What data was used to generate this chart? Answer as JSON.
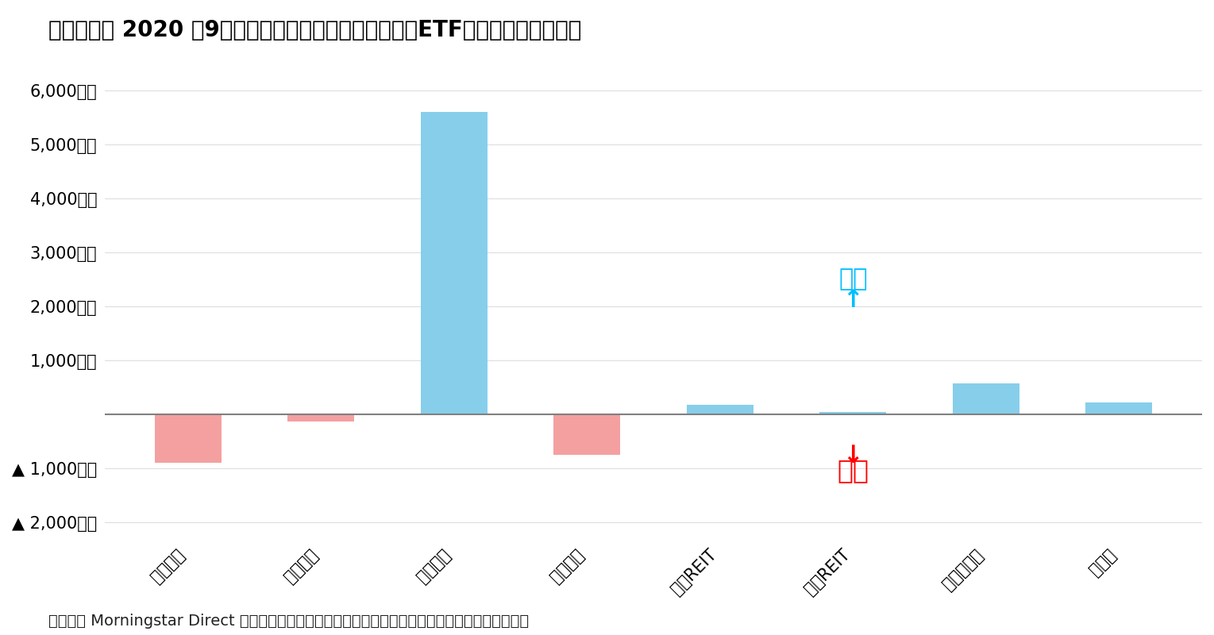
{
  "title": "》図表１》 2020 年9月の日本籍追加型株式投信（除くETF）の推計資金流出入",
  "title_raw": "【図表１】 2020 年9月の日本籍追加型株式投信（除くETF）の推計資金流出入",
  "categories": [
    "国内株式",
    "国内債券",
    "外国株式",
    "外国債券",
    "国内REIT",
    "外国REIT",
    "バランス型",
    "その他"
  ],
  "values": [
    -900,
    -130,
    5600,
    -750,
    180,
    50,
    580,
    230
  ],
  "bar_colors_positive": "#87CEEB",
  "bar_colors_negative": "#F4A0A0",
  "ytick_labels": [
    "6,000億円",
    "5,000億円",
    "4,000億円",
    "3,000億円",
    "2,000億円",
    "1,000億円",
    "",
    "▲ 1,000億円",
    "▲ 2,000億円"
  ],
  "ytick_values": [
    6000,
    5000,
    4000,
    3000,
    2000,
    1000,
    0,
    -1000,
    -2000
  ],
  "ylim": [
    -2300,
    6400
  ],
  "annotation_inflow_text": "流入",
  "annotation_inflow_arrow": "↑",
  "annotation_outflow_text": "流出",
  "annotation_outflow_arrow": "↓",
  "inflow_color": "#00BFFF",
  "outflow_color": "#FF0000",
  "footer": "（資料） Morningstar Direct より作成。各資産クラスはイボットソン分類を用いてファンドを分類",
  "background_color": "#ffffff",
  "zero_line_color": "#808080",
  "title_fontsize": 20,
  "axis_fontsize": 15,
  "footer_fontsize": 14,
  "bar_width": 0.5
}
